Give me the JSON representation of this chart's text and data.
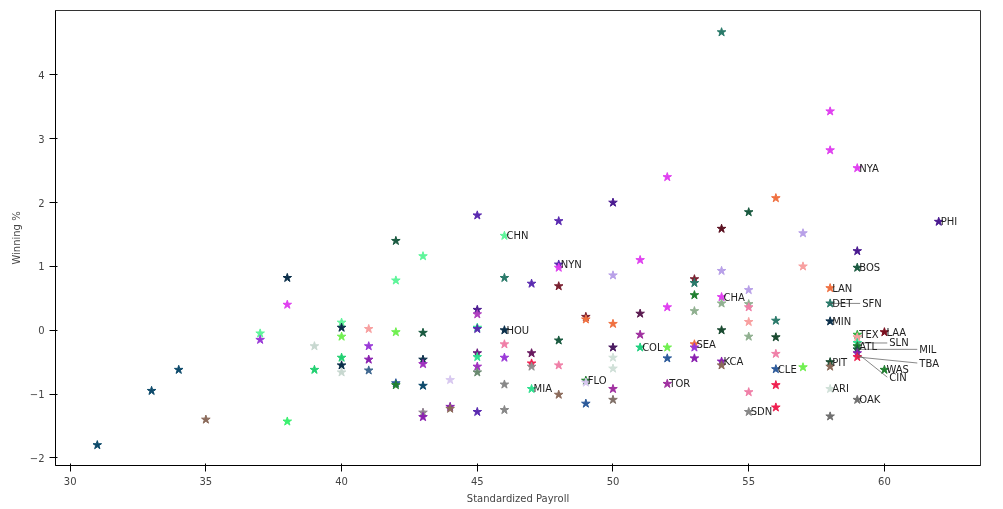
{
  "chart_data": {
    "type": "scatter",
    "xlabel": "Standardized Payroll",
    "ylabel": "Winning %",
    "marker": "star",
    "grid": false,
    "xlim": [
      29.46,
      63.54
    ],
    "ylim": [
      -2.12,
      5.01
    ],
    "xticks": [
      30,
      35,
      40,
      45,
      50,
      55,
      60
    ],
    "yticks": [
      -2,
      -1,
      0,
      1,
      2,
      3,
      4
    ],
    "x": [
      31,
      33,
      34,
      35,
      37,
      37,
      38,
      38,
      38,
      39,
      39,
      40,
      40,
      40,
      40,
      40,
      40,
      41,
      41,
      41,
      41,
      42,
      42,
      42,
      42,
      42,
      43,
      43,
      43,
      43,
      43,
      43,
      43,
      44,
      44,
      44,
      45,
      45,
      45,
      45,
      45,
      45,
      45,
      45,
      45,
      45,
      46,
      46,
      46,
      46,
      46,
      46,
      46,
      47,
      47,
      47,
      47,
      47,
      48,
      48,
      48,
      48,
      48,
      48,
      48,
      49,
      49,
      49,
      49,
      49,
      50,
      50,
      50,
      50,
      50,
      50,
      50,
      50,
      51,
      51,
      51,
      51,
      52,
      52,
      52,
      52,
      52,
      53,
      53,
      53,
      53,
      53,
      53,
      53,
      54,
      54,
      54,
      54,
      54,
      54,
      54,
      54,
      55,
      55,
      55,
      55,
      55,
      55,
      55,
      55,
      56,
      56,
      56,
      56,
      56,
      56,
      56,
      57,
      57,
      57,
      58,
      58,
      58,
      58,
      58,
      58,
      58,
      58,
      58,
      59,
      59,
      59,
      59,
      59,
      59,
      59,
      59,
      59,
      59,
      59,
      60,
      60,
      62
    ],
    "values": [
      -1.8,
      -0.95,
      -0.62,
      -1.4,
      -0.05,
      -0.15,
      0.82,
      0.4,
      -1.43,
      -0.25,
      -0.62,
      0.12,
      0.04,
      -0.1,
      -0.43,
      -0.55,
      -0.66,
      0.02,
      -0.25,
      -0.46,
      -0.63,
      1.4,
      0.78,
      -0.03,
      -0.83,
      -0.86,
      1.16,
      -0.04,
      -0.46,
      -0.53,
      -0.87,
      -1.29,
      -1.36,
      -0.78,
      -1.2,
      -1.23,
      1.8,
      0.32,
      0.25,
      0.04,
      0.02,
      -0.36,
      -0.42,
      -0.57,
      -0.66,
      -1.28,
      1.48,
      0.82,
      0.0,
      -0.22,
      -0.43,
      -0.85,
      -1.25,
      0.73,
      -0.36,
      -0.52,
      -0.57,
      -0.92,
      1.71,
      1.03,
      0.98,
      0.69,
      -0.16,
      -0.55,
      -1.01,
      0.21,
      0.17,
      -0.79,
      -0.82,
      -1.15,
      2.0,
      0.86,
      0.1,
      -0.27,
      -0.43,
      -0.6,
      -0.92,
      -1.09,
      1.1,
      0.26,
      -0.07,
      -0.27,
      2.4,
      0.36,
      -0.27,
      -0.44,
      -0.84,
      0.8,
      0.74,
      0.55,
      0.3,
      -0.22,
      -0.27,
      -0.44,
      4.67,
      1.59,
      0.93,
      0.52,
      0.42,
      0.0,
      -0.49,
      -0.55,
      1.85,
      0.63,
      0.41,
      0.36,
      0.13,
      -0.1,
      -0.97,
      -1.28,
      2.07,
      0.15,
      -0.11,
      -0.37,
      -0.61,
      -0.86,
      -1.21,
      1.52,
      1.0,
      -0.58,
      3.43,
      2.82,
      0.66,
      0.42,
      0.14,
      -0.5,
      -0.57,
      -0.92,
      -1.35,
      2.54,
      1.24,
      0.98,
      -0.07,
      -0.11,
      -0.2,
      -0.25,
      -0.3,
      -0.36,
      -0.42,
      -1.09,
      -0.03,
      -0.62,
      1.7
    ],
    "colors": [
      "#0d4a6b",
      "#0d4a6b",
      "#0d4a6b",
      "#8b6a5a",
      "#5ef59a",
      "#9a3ad8",
      "#0b2f4a",
      "#e040f0",
      "#3cf070",
      "#c8d8d0",
      "#20d070",
      "#5ef59a",
      "#0b2f4a",
      "#70f050",
      "#20d070",
      "#0b2f4a",
      "#c8d8d0",
      "#f8a0a0",
      "#9a3ad8",
      "#8a20b0",
      "#406890",
      "#1a5a40",
      "#5ef59a",
      "#70f050",
      "#2c5a9a",
      "#208030",
      "#5ef59a",
      "#1a5a40",
      "#0b2f4a",
      "#a030c0",
      "#0d4a6b",
      "#908090",
      "#8a20b0",
      "#d8c8f0",
      "#8a20b0",
      "#8b6a5a",
      "#5a2ab0",
      "#4a1a90",
      "#b040c0",
      "#30e090",
      "#5a2ab0",
      "#6a1a80",
      "#30e090",
      "#a030c0",
      "#6a8a70",
      "#5a2ab0",
      "#5ef59a",
      "#2a7a6a",
      "#0b2f4a",
      "#f080a8",
      "#9a3ad8",
      "#888888",
      "#888888",
      "#5a2ab0",
      "#6a1a60",
      "#f02050",
      "#909090",
      "#30e090",
      "#5a2ab0",
      "#5a2ab0",
      "#e040f0",
      "#7a2030",
      "#1a5a40",
      "#f080a8",
      "#8b6a5a",
      "#7a2030",
      "#f07040",
      "#208030",
      "#d8c8f0",
      "#2c5a9a",
      "#4a1a90",
      "#b8a0e8",
      "#f07040",
      "#4a1a60",
      "#d0e0d8",
      "#d0e0d8",
      "#a030a0",
      "#807068",
      "#e040f0",
      "#5a1a50",
      "#a030a0",
      "#20d080",
      "#e040f0",
      "#e040f0",
      "#70f050",
      "#2c5a9a",
      "#a030a0",
      "#7a2030",
      "#2a7a6a",
      "#208030",
      "#90b090",
      "#f07040",
      "#9a3ad8",
      "#8a20b0",
      "#2a7a6a",
      "#5a1020",
      "#b8a0e8",
      "#e040f0",
      "#90b090",
      "#1a4a30",
      "#8a20b0",
      "#8b6a5a",
      "#1a5a40",
      "#b8a0e8",
      "#90b090",
      "#f080a8",
      "#f8a0a0",
      "#90b090",
      "#f080a8",
      "#888888",
      "#f07040",
      "#2a7a6a",
      "#1a4a30",
      "#f080a8",
      "#2c5a9a",
      "#f02050",
      "#f02050",
      "#b8a0e8",
      "#f8a0a0",
      "#70f050",
      "#e040f0",
      "#e040f0",
      "#f07040",
      "#2a7a6a",
      "#0b2f4a",
      "#1a4a30",
      "#8b6a5a",
      "#d0e0d8",
      "#707070",
      "#e040f0",
      "#4a1a90",
      "#1a5a40",
      "#30b040",
      "#f8a0a0",
      "#30e090",
      "#208030",
      "#1a5a40",
      "#8a20b0",
      "#f02050",
      "#707070",
      "#7a1020",
      "#208030",
      "#4a1a90"
    ],
    "annotations": [
      {
        "text": "CHN",
        "x": 46,
        "y": 1.48
      },
      {
        "text": "HOU",
        "x": 46,
        "y": 0.0
      },
      {
        "text": "MIA",
        "x": 47,
        "y": -0.92
      },
      {
        "text": "NYN",
        "x": 48,
        "y": 1.03
      },
      {
        "text": "FLO",
        "x": 49,
        "y": -0.79
      },
      {
        "text": "COL",
        "x": 51,
        "y": -0.27
      },
      {
        "text": "TOR",
        "x": 52,
        "y": -0.84
      },
      {
        "text": "SEA",
        "x": 53,
        "y": -0.22
      },
      {
        "text": "CHA",
        "x": 54,
        "y": 0.52
      },
      {
        "text": "KCA",
        "x": 54,
        "y": -0.49
      },
      {
        "text": "SDN",
        "x": 55,
        "y": -1.28
      },
      {
        "text": "CLE",
        "x": 56,
        "y": -0.61
      },
      {
        "text": "LAN",
        "x": 58,
        "y": 0.66
      },
      {
        "text": "DET",
        "x": 58,
        "y": 0.42
      },
      {
        "text": "SFN",
        "x": 58,
        "y": 0.42
      },
      {
        "text": "MIN",
        "x": 58,
        "y": 0.14
      },
      {
        "text": "PIT",
        "x": 58,
        "y": -0.5
      },
      {
        "text": "ARI",
        "x": 58,
        "y": -0.92
      },
      {
        "text": "NYA",
        "x": 59,
        "y": 2.54
      },
      {
        "text": "BOS",
        "x": 59,
        "y": 0.98
      },
      {
        "text": "TEX",
        "x": 59,
        "y": -0.07
      },
      {
        "text": "SLN",
        "x": 59,
        "y": -0.2
      },
      {
        "text": "ATL",
        "x": 59,
        "y": -0.25
      },
      {
        "text": "MIL",
        "x": 59,
        "y": -0.3
      },
      {
        "text": "CIN",
        "x": 59,
        "y": -0.36
      },
      {
        "text": "TBA",
        "x": 59,
        "y": -0.42
      },
      {
        "text": "OAK",
        "x": 59,
        "y": -1.09
      },
      {
        "text": "LAA",
        "x": 60,
        "y": -0.03
      },
      {
        "text": "WAS",
        "x": 60,
        "y": -0.62
      },
      {
        "text": "PHI",
        "x": 62,
        "y": 1.7
      }
    ]
  }
}
